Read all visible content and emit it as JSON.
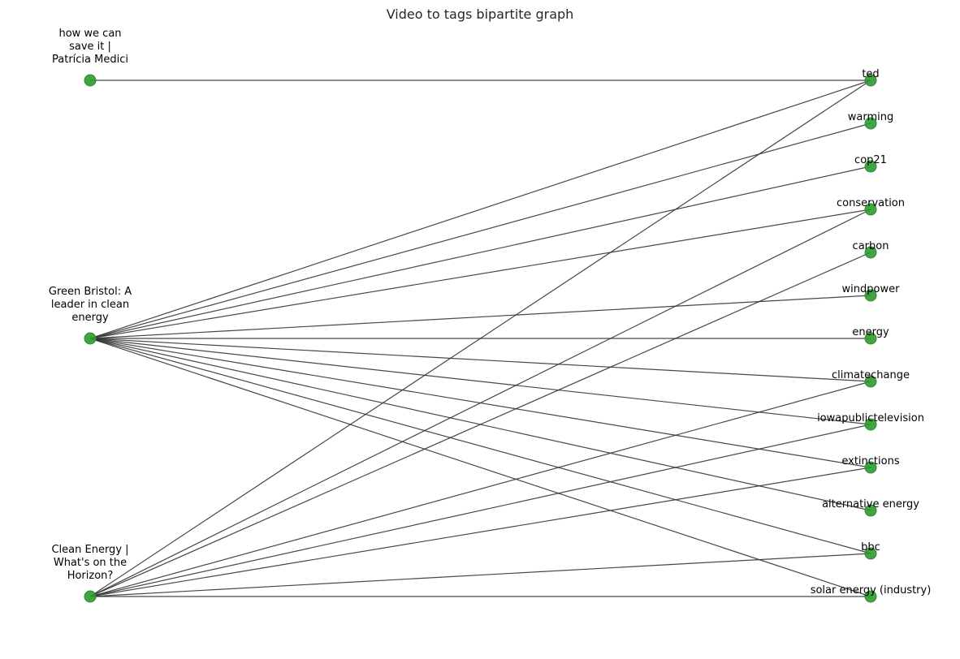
{
  "title": "Video to tags bipartite graph",
  "colors": {
    "node": "#2e9a2e",
    "edge": "#333333",
    "background": "#ffffff"
  },
  "videos": [
    {
      "id": "v1",
      "label_lines": [
        "how we can",
        "save it |",
        "Patrícia Medici"
      ]
    },
    {
      "id": "v2",
      "label_lines": [
        "Green Bristol: A",
        "leader in clean",
        "energy"
      ]
    },
    {
      "id": "v3",
      "label_lines": [
        "Clean Energy |",
        "What's on the",
        "Horizon?"
      ]
    }
  ],
  "tags": [
    "ted",
    "warming",
    "cop21",
    "conservation",
    "carbon",
    "windpower",
    "energy",
    "climatechange",
    "iowapublictelevision",
    "extinctions",
    "alternative energy",
    "bbc",
    "solar energy (industry)"
  ],
  "edges": [
    [
      "v1",
      "ted"
    ],
    [
      "v2",
      "ted"
    ],
    [
      "v2",
      "warming"
    ],
    [
      "v2",
      "cop21"
    ],
    [
      "v2",
      "conservation"
    ],
    [
      "v2",
      "windpower"
    ],
    [
      "v2",
      "energy"
    ],
    [
      "v2",
      "climatechange"
    ],
    [
      "v2",
      "iowapublictelevision"
    ],
    [
      "v2",
      "extinctions"
    ],
    [
      "v2",
      "alternative energy"
    ],
    [
      "v2",
      "bbc"
    ],
    [
      "v2",
      "solar energy (industry)"
    ],
    [
      "v3",
      "ted"
    ],
    [
      "v3",
      "conservation"
    ],
    [
      "v3",
      "carbon"
    ],
    [
      "v3",
      "climatechange"
    ],
    [
      "v3",
      "iowapublictelevision"
    ],
    [
      "v3",
      "extinctions"
    ],
    [
      "v3",
      "bbc"
    ],
    [
      "v3",
      "solar energy (industry)"
    ]
  ]
}
